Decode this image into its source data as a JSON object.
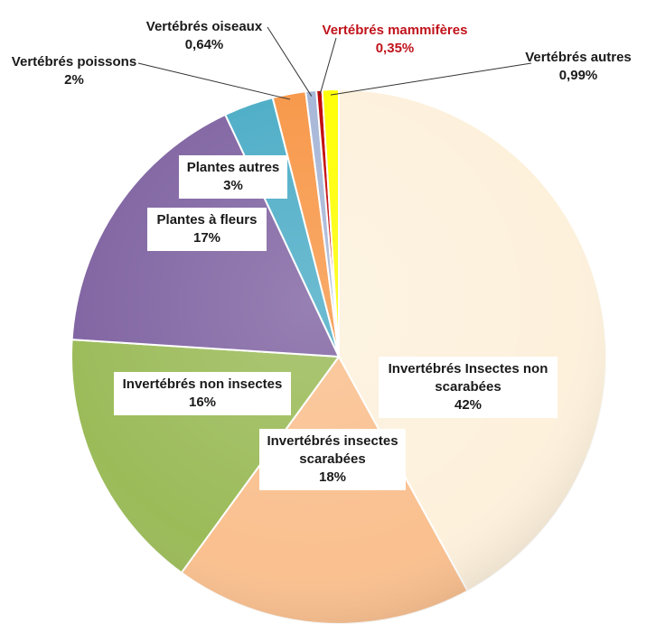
{
  "chart_data": {
    "type": "pie",
    "title": "",
    "slices": [
      {
        "name": "Invertébrés Insectes non scarabées",
        "label_lines": [
          "Invertébrés Insectes non",
          "scarabées"
        ],
        "value_text": "42%",
        "value": 42,
        "color": "#fdf1dc",
        "label_red": false
      },
      {
        "name": "Invertébrés insectes scarabées",
        "label_lines": [
          "Invertébrés insectes",
          "scarabées"
        ],
        "value_text": "18%",
        "value": 18,
        "color": "#fac08f",
        "label_red": false
      },
      {
        "name": "Invertébrés non insectes",
        "label_lines": [
          "Invertébrés non insectes"
        ],
        "value_text": "16%",
        "value": 16,
        "color": "#9bbb59",
        "label_red": false
      },
      {
        "name": "Plantes à fleurs",
        "label_lines": [
          "Plantes à fleurs"
        ],
        "value_text": "17%",
        "value": 17,
        "color": "#8064a2",
        "label_red": false
      },
      {
        "name": "Plantes autres",
        "label_lines": [
          "Plantes autres"
        ],
        "value_text": "3%",
        "value": 3,
        "color": "#4bacc6",
        "label_red": false
      },
      {
        "name": "Vertébrés poissons",
        "label_lines": [
          "Vertébrés poissons"
        ],
        "value_text": "2%",
        "value": 2,
        "color": "#f79646",
        "label_red": false
      },
      {
        "name": "Vertébrés oiseaux",
        "label_lines": [
          "Vertébrés oiseaux"
        ],
        "value_text": "0,64%",
        "value": 0.64,
        "color": "#a5b5d6",
        "label_red": false
      },
      {
        "name": "Vertébrés mammifères",
        "label_lines": [
          "Vertébrés mammifères"
        ],
        "value_text": "0,35%",
        "value": 0.35,
        "color": "#c00000",
        "label_red": true
      },
      {
        "name": "Vertébrés autres",
        "label_lines": [
          "Vertébrés autres"
        ],
        "value_text": "0,99%",
        "value": 0.99,
        "color": "#ffff00",
        "label_red": false
      }
    ],
    "legend": "none"
  }
}
